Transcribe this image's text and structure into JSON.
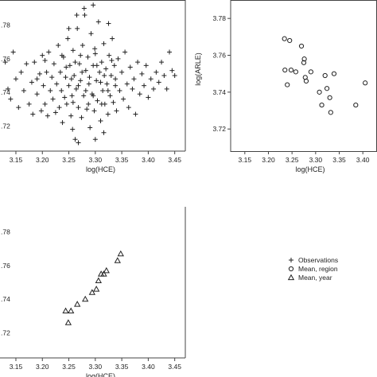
{
  "chart_data": [
    {
      "id": "p1",
      "type": "scatter",
      "marker": "plus",
      "xlabel": "log(HCE)",
      "ylabel": "",
      "xlim": [
        3.12,
        3.47
      ],
      "ylim": [
        3.705,
        3.795
      ],
      "x_ticks": [
        "3.15",
        "3.20",
        "3.25",
        "3.30",
        "3.35",
        "3.40",
        "3.45"
      ],
      "x_tick_values": [
        3.15,
        3.2,
        3.25,
        3.3,
        3.35,
        3.4,
        3.45
      ],
      "y_ticks": [
        ".72",
        ".74",
        ".76",
        ".78"
      ],
      "y_tick_values": [
        3.72,
        3.74,
        3.76,
        3.78
      ],
      "points": [
        [
          3.13,
          3.758
        ],
        [
          3.135,
          3.742
        ],
        [
          3.14,
          3.736
        ],
        [
          3.145,
          3.764
        ],
        [
          3.15,
          3.748
        ],
        [
          3.155,
          3.731
        ],
        [
          3.16,
          3.752
        ],
        [
          3.165,
          3.741
        ],
        [
          3.17,
          3.757
        ],
        [
          3.175,
          3.733
        ],
        [
          3.18,
          3.746
        ],
        [
          3.182,
          3.727
        ],
        [
          3.185,
          3.758
        ],
        [
          3.19,
          3.739
        ],
        [
          3.195,
          3.751
        ],
        [
          3.198,
          3.729
        ],
        [
          3.2,
          3.762
        ],
        [
          3.202,
          3.744
        ],
        [
          3.205,
          3.733
        ],
        [
          3.208,
          3.752
        ],
        [
          3.21,
          3.726
        ],
        [
          3.212,
          3.764
        ],
        [
          3.215,
          3.741
        ],
        [
          3.218,
          3.749
        ],
        [
          3.22,
          3.736
        ],
        [
          3.222,
          3.757
        ],
        [
          3.225,
          3.728
        ],
        [
          3.227,
          3.745
        ],
        [
          3.23,
          3.768
        ],
        [
          3.232,
          3.731
        ],
        [
          3.234,
          3.752
        ],
        [
          3.236,
          3.741
        ],
        [
          3.238,
          3.722
        ],
        [
          3.24,
          3.761
        ],
        [
          3.242,
          3.737
        ],
        [
          3.244,
          3.749
        ],
        [
          3.246,
          3.733
        ],
        [
          3.248,
          3.772
        ],
        [
          3.25,
          3.744
        ],
        [
          3.252,
          3.756
        ],
        [
          3.254,
          3.726
        ],
        [
          3.256,
          3.738
        ],
        [
          3.258,
          3.765
        ],
        [
          3.26,
          3.75
        ],
        [
          3.262,
          3.712
        ],
        [
          3.264,
          3.742
        ],
        [
          3.266,
          3.778
        ],
        [
          3.268,
          3.731
        ],
        [
          3.27,
          3.757
        ],
        [
          3.272,
          3.747
        ],
        [
          3.274,
          3.725
        ],
        [
          3.276,
          3.768
        ],
        [
          3.278,
          3.738
        ],
        [
          3.28,
          3.786
        ],
        [
          3.282,
          3.753
        ],
        [
          3.284,
          3.73
        ],
        [
          3.286,
          3.761
        ],
        [
          3.288,
          3.745
        ],
        [
          3.29,
          3.719
        ],
        [
          3.292,
          3.775
        ],
        [
          3.294,
          3.739
        ],
        [
          3.296,
          3.756
        ],
        [
          3.298,
          3.729
        ],
        [
          3.3,
          3.763
        ],
        [
          3.302,
          3.747
        ],
        [
          3.304,
          3.735
        ],
        [
          3.306,
          3.782
        ],
        [
          3.308,
          3.752
        ],
        [
          3.31,
          3.723
        ],
        [
          3.312,
          3.758
        ],
        [
          3.314,
          3.741
        ],
        [
          3.316,
          3.769
        ],
        [
          3.318,
          3.733
        ],
        [
          3.32,
          3.754
        ],
        [
          3.322,
          3.745
        ],
        [
          3.324,
          3.727
        ],
        [
          3.326,
          3.762
        ],
        [
          3.328,
          3.738
        ],
        [
          3.33,
          3.75
        ],
        [
          3.332,
          3.772
        ],
        [
          3.334,
          3.734
        ],
        [
          3.336,
          3.756
        ],
        [
          3.338,
          3.744
        ],
        [
          3.34,
          3.729
        ],
        [
          3.343,
          3.76
        ],
        [
          3.346,
          3.741
        ],
        [
          3.35,
          3.752
        ],
        [
          3.353,
          3.736
        ],
        [
          3.356,
          3.764
        ],
        [
          3.36,
          3.745
        ],
        [
          3.363,
          3.731
        ],
        [
          3.366,
          3.755
        ],
        [
          3.37,
          3.742
        ],
        [
          3.373,
          3.748
        ],
        [
          3.376,
          3.727
        ],
        [
          3.38,
          3.758
        ],
        [
          3.384,
          3.739
        ],
        [
          3.388,
          3.751
        ],
        [
          3.392,
          3.744
        ],
        [
          3.396,
          3.756
        ],
        [
          3.4,
          3.737
        ],
        [
          3.405,
          3.748
        ],
        [
          3.41,
          3.742
        ],
        [
          3.415,
          3.752
        ],
        [
          3.42,
          3.746
        ],
        [
          3.425,
          3.758
        ],
        [
          3.43,
          3.75
        ],
        [
          3.435,
          3.742
        ],
        [
          3.44,
          3.764
        ],
        [
          3.445,
          3.753
        ],
        [
          3.45,
          3.75
        ],
        [
          3.245,
          3.755
        ],
        [
          3.255,
          3.748
        ],
        [
          3.262,
          3.758
        ],
        [
          3.268,
          3.744
        ],
        [
          3.275,
          3.752
        ],
        [
          3.282,
          3.741
        ],
        [
          3.289,
          3.749
        ],
        [
          3.296,
          3.738
        ],
        [
          3.303,
          3.756
        ],
        [
          3.31,
          3.746
        ],
        [
          3.317,
          3.75
        ],
        [
          3.324,
          3.741
        ],
        [
          3.331,
          3.759
        ],
        [
          3.338,
          3.748
        ],
        [
          3.258,
          3.734
        ],
        [
          3.287,
          3.733
        ],
        [
          3.312,
          3.733
        ],
        [
          3.272,
          3.762
        ],
        [
          3.299,
          3.766
        ],
        [
          3.257,
          3.718
        ],
        [
          3.268,
          3.71
        ],
        [
          3.3,
          3.712
        ],
        [
          3.316,
          3.716
        ],
        [
          3.279,
          3.79
        ],
        [
          3.296,
          3.792
        ],
        [
          3.265,
          3.786
        ],
        [
          3.25,
          3.778
        ],
        [
          3.325,
          3.781
        ],
        [
          3.237,
          3.762
        ],
        [
          3.205,
          3.759
        ],
        [
          3.19,
          3.748
        ]
      ]
    },
    {
      "id": "p2",
      "type": "scatter",
      "marker": "circle",
      "xlabel": "log(HCE)",
      "ylabel": "log(ARLE)",
      "xlim": [
        3.12,
        3.43
      ],
      "ylim": [
        3.708,
        3.79
      ],
      "x_ticks": [
        "3.15",
        "3.20",
        "3.25",
        "3.30",
        "3.35",
        "3.40"
      ],
      "x_tick_values": [
        3.15,
        3.2,
        3.25,
        3.3,
        3.35,
        3.4
      ],
      "y_ticks": [
        "3.72",
        "3.74",
        "3.76",
        "3.78"
      ],
      "y_tick_values": [
        3.72,
        3.74,
        3.76,
        3.78
      ],
      "points": [
        [
          3.234,
          3.769
        ],
        [
          3.245,
          3.768
        ],
        [
          3.235,
          3.752
        ],
        [
          3.248,
          3.752
        ],
        [
          3.24,
          3.744
        ],
        [
          3.258,
          3.751
        ],
        [
          3.27,
          3.765
        ],
        [
          3.276,
          3.758
        ],
        [
          3.275,
          3.756
        ],
        [
          3.278,
          3.748
        ],
        [
          3.28,
          3.746
        ],
        [
          3.29,
          3.751
        ],
        [
          3.308,
          3.74
        ],
        [
          3.313,
          3.733
        ],
        [
          3.32,
          3.749
        ],
        [
          3.324,
          3.742
        ],
        [
          3.33,
          3.737
        ],
        [
          3.332,
          3.729
        ],
        [
          3.339,
          3.75
        ],
        [
          3.385,
          3.733
        ],
        [
          3.405,
          3.745
        ]
      ]
    },
    {
      "id": "p3",
      "type": "scatter",
      "marker": "triangle",
      "xlabel": "log(HCE)",
      "ylabel": "",
      "xlim": [
        3.12,
        3.47
      ],
      "ylim": [
        3.705,
        3.795
      ],
      "x_ticks": [
        "3.15",
        "3.20",
        "3.25",
        "3.30",
        "3.35",
        "3.40",
        "3.45"
      ],
      "x_tick_values": [
        3.15,
        3.2,
        3.25,
        3.3,
        3.35,
        3.4,
        3.45
      ],
      "y_ticks": [
        ".72",
        ".74",
        ".76",
        ".78"
      ],
      "y_tick_values": [
        3.72,
        3.74,
        3.76,
        3.78
      ],
      "points": [
        [
          3.244,
          3.733
        ],
        [
          3.254,
          3.733
        ],
        [
          3.249,
          3.726
        ],
        [
          3.266,
          3.737
        ],
        [
          3.281,
          3.74
        ],
        [
          3.294,
          3.744
        ],
        [
          3.302,
          3.746
        ],
        [
          3.306,
          3.751
        ],
        [
          3.311,
          3.755
        ],
        [
          3.316,
          3.755
        ],
        [
          3.321,
          3.757
        ],
        [
          3.342,
          3.763
        ],
        [
          3.348,
          3.767
        ]
      ]
    }
  ],
  "legend": {
    "items": [
      {
        "label": "Observations",
        "marker": "plus"
      },
      {
        "label": "Mean, region",
        "marker": "circle"
      },
      {
        "label": "Mean, year",
        "marker": "triangle"
      }
    ]
  }
}
